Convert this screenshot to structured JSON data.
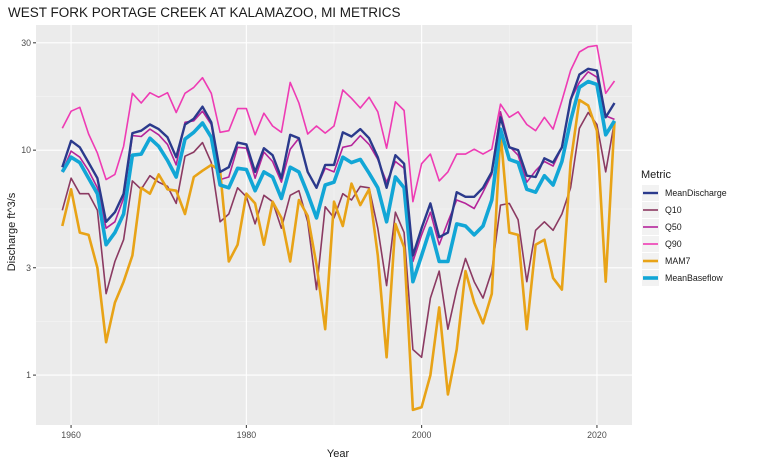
{
  "chart_data": {
    "type": "line",
    "title": "WEST FORK PORTAGE CREEK AT KALAMAZOO, MI  METRICS",
    "xlabel": "Year",
    "ylabel": "Discharge ft^3/s",
    "y_scale": "log10",
    "xlim": [
      1956,
      2024
    ],
    "ylim": [
      0.6,
      36
    ],
    "x_ticks": [
      1960,
      1980,
      2000,
      2020
    ],
    "x_tick_labels": [
      "1960",
      "1980",
      "2000",
      "2020"
    ],
    "y_ticks": [
      1,
      3,
      10,
      30
    ],
    "y_tick_labels": [
      "1",
      "3",
      "10",
      "30"
    ],
    "grid": true,
    "background": "#ebebeb",
    "legend": {
      "title": "Metric",
      "placement": "right",
      "entries": [
        "MeanDischarge",
        "Q10",
        "Q50",
        "Q90",
        "MAM7",
        "MeanBaseflow"
      ]
    },
    "series_style": {
      "MeanDischarge": {
        "color": "#2b3a8c",
        "width": 2.4
      },
      "Q10": {
        "color": "#8b3a62",
        "width": 1.6
      },
      "Q50": {
        "color": "#b5249a",
        "width": 1.6
      },
      "Q90": {
        "color": "#ee3bb4",
        "width": 1.6
      },
      "MAM7": {
        "color": "#e8a317",
        "width": 2.6
      },
      "MeanBaseflow": {
        "color": "#12a6d6",
        "width": 3.6
      }
    },
    "x": [
      1959,
      1960,
      1961,
      1962,
      1963,
      1964,
      1965,
      1966,
      1967,
      1968,
      1969,
      1970,
      1971,
      1972,
      1973,
      1974,
      1975,
      1976,
      1977,
      1978,
      1979,
      1980,
      1981,
      1982,
      1983,
      1984,
      1985,
      1986,
      1987,
      1988,
      1989,
      1990,
      1991,
      1992,
      1993,
      1994,
      1995,
      1996,
      1997,
      1998,
      1999,
      2000,
      2001,
      2002,
      2003,
      2004,
      2005,
      2006,
      2007,
      2008,
      2009,
      2010,
      2011,
      2012,
      2013,
      2014,
      2015,
      2016,
      2017,
      2018,
      2019,
      2020,
      2021,
      2022
    ],
    "series": [
      {
        "name": "Q90",
        "values": [
          12.5,
          14.9,
          15.5,
          11.8,
          9.7,
          7.4,
          7.8,
          10.4,
          17.9,
          16.2,
          18.0,
          17.2,
          18.0,
          14.7,
          17.9,
          19.0,
          21.0,
          17.9,
          12.0,
          12.2,
          15.3,
          15.3,
          11.7,
          14.6,
          12.8,
          12.0,
          20.0,
          16.2,
          11.8,
          12.8,
          11.9,
          12.8,
          18.5,
          17.0,
          15.4,
          17.2,
          14.8,
          10.2,
          16.4,
          15.0,
          5.9,
          8.7,
          9.6,
          7.3,
          8.0,
          9.6,
          9.6,
          10.1,
          9.6,
          10.1,
          16.0,
          14.0,
          14.8,
          13.0,
          12.2,
          14.0,
          12.4,
          16.6,
          22.6,
          27.3,
          28.8,
          29.2,
          17.9,
          20.3
        ]
      },
      {
        "name": "Q50",
        "values": [
          8.0,
          9.9,
          9.3,
          8.1,
          6.8,
          4.5,
          4.8,
          6.1,
          11.6,
          11.5,
          12.4,
          11.7,
          10.6,
          8.6,
          13.3,
          13.5,
          14.9,
          13.0,
          7.4,
          7.6,
          10.3,
          10.2,
          7.5,
          9.8,
          8.9,
          7.2,
          10.1,
          11.3,
          8.0,
          6.8,
          8.3,
          8.0,
          10.3,
          10.5,
          11.6,
          10.6,
          9.1,
          7.2,
          8.9,
          8.3,
          3.2,
          4.2,
          5.3,
          3.8,
          4.8,
          6.0,
          5.8,
          5.5,
          6.5,
          7.8,
          14.8,
          10.4,
          9.5,
          7.2,
          8.1,
          8.9,
          8.5,
          10.3,
          16.7,
          20.0,
          22.3,
          21.1,
          14.2,
          13.7
        ]
      },
      {
        "name": "Q10",
        "values": [
          5.4,
          7.5,
          6.4,
          6.4,
          5.4,
          2.3,
          3.2,
          4.0,
          7.3,
          6.7,
          7.7,
          7.2,
          6.9,
          5.8,
          9.4,
          9.8,
          10.8,
          8.8,
          4.8,
          5.2,
          6.8,
          6.2,
          4.7,
          6.3,
          5.9,
          4.5,
          6.3,
          6.6,
          4.8,
          2.4,
          5.6,
          5.0,
          6.4,
          6.0,
          6.9,
          6.8,
          4.5,
          2.5,
          5.3,
          4.3,
          1.3,
          1.2,
          2.2,
          2.9,
          1.6,
          2.4,
          3.3,
          2.6,
          2.2,
          2.9,
          5.7,
          5.8,
          4.9,
          2.6,
          4.4,
          4.8,
          4.4,
          5.2,
          6.8,
          12.5,
          14.7,
          13.0,
          8.0,
          13.4
        ]
      },
      {
        "name": "MAM7",
        "values": [
          4.6,
          6.7,
          4.3,
          4.2,
          3.0,
          1.4,
          2.1,
          2.6,
          3.4,
          6.8,
          6.4,
          7.8,
          6.7,
          6.6,
          5.2,
          7.6,
          8.1,
          8.6,
          8.1,
          3.2,
          3.8,
          6.4,
          5.8,
          3.8,
          5.9,
          5.0,
          3.2,
          6.0,
          5.1,
          3.1,
          1.6,
          5.9,
          4.6,
          7.1,
          5.7,
          6.7,
          3.4,
          1.2,
          4.7,
          3.7,
          0.7,
          0.72,
          1.0,
          2.0,
          0.82,
          1.3,
          2.9,
          2.1,
          1.7,
          2.3,
          12.0,
          4.3,
          4.2,
          1.6,
          3.8,
          4.0,
          2.7,
          2.4,
          8.8,
          16.7,
          15.8,
          12.2,
          2.6,
          13.4
        ]
      },
      {
        "name": "MeanBaseflow",
        "values": [
          8.0,
          9.3,
          8.8,
          7.5,
          6.4,
          3.8,
          4.3,
          5.2,
          9.5,
          9.6,
          11.3,
          10.4,
          9.0,
          7.6,
          11.2,
          12.0,
          13.2,
          11.4,
          7.0,
          6.8,
          8.3,
          8.2,
          6.6,
          8.0,
          7.6,
          6.1,
          8.4,
          8.0,
          6.4,
          5.0,
          7.0,
          7.2,
          9.3,
          8.8,
          9.1,
          7.9,
          6.8,
          4.8,
          7.6,
          6.8,
          2.6,
          3.4,
          4.5,
          3.2,
          3.2,
          4.7,
          4.6,
          4.2,
          4.6,
          6.0,
          12.4,
          9.1,
          8.8,
          6.7,
          6.5,
          7.7,
          7.0,
          8.9,
          13.5,
          19.0,
          20.2,
          19.6,
          11.7,
          13.5
        ]
      },
      {
        "name": "MeanDischarge",
        "values": [
          8.4,
          11.0,
          10.3,
          8.8,
          7.5,
          4.8,
          5.3,
          6.4,
          11.9,
          12.2,
          13.0,
          12.4,
          11.4,
          9.3,
          13.0,
          13.8,
          15.6,
          13.3,
          8.0,
          8.4,
          10.8,
          10.6,
          8.0,
          10.2,
          9.5,
          7.5,
          11.7,
          11.3,
          8.0,
          6.8,
          8.6,
          8.6,
          12.0,
          11.5,
          12.4,
          11.3,
          9.3,
          6.8,
          9.5,
          8.7,
          3.4,
          4.5,
          5.8,
          4.1,
          4.3,
          6.5,
          6.2,
          6.2,
          6.8,
          8.0,
          14.0,
          10.3,
          10.0,
          7.7,
          7.6,
          9.2,
          8.8,
          10.3,
          16.7,
          21.7,
          23.0,
          22.6,
          14.0,
          16.2
        ]
      }
    ]
  }
}
